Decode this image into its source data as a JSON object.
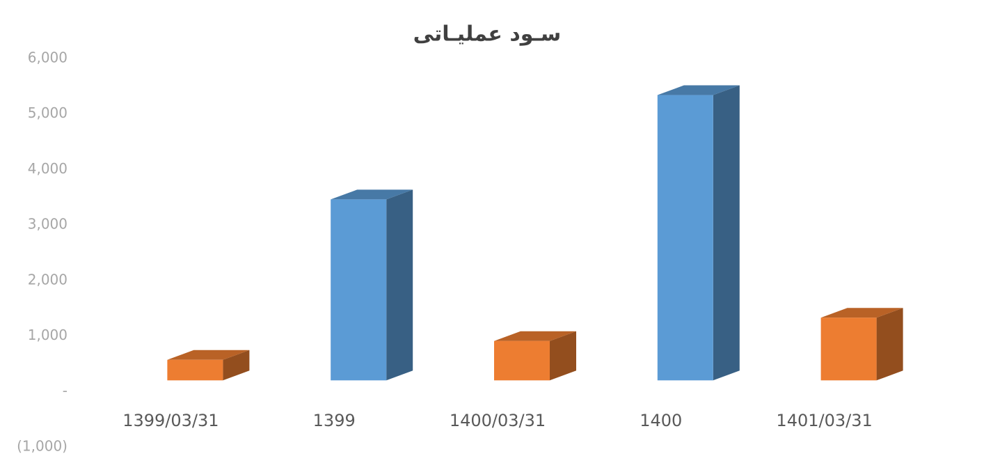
{
  "chart_data": {
    "type": "bar3d",
    "title": "سـود عملیـاتی",
    "categories": [
      "1399/03/31",
      "1399",
      "1400/03/31",
      "1400",
      "1401/03/31"
    ],
    "values": [
      370,
      3260,
      710,
      5140,
      1130
    ],
    "colors": [
      "#ed7d31",
      "#5b9bd5",
      "#ed7d31",
      "#5b9bd5",
      "#ed7d31"
    ],
    "ylim": [
      -1000,
      6000
    ],
    "yticks": [
      {
        "value": -1000,
        "label": "(1,000)"
      },
      {
        "value": 0,
        "label": "-"
      },
      {
        "value": 1000,
        "label": "1,000"
      },
      {
        "value": 2000,
        "label": "2,000"
      },
      {
        "value": 3000,
        "label": "3,000"
      },
      {
        "value": 4000,
        "label": "4,000"
      },
      {
        "value": 5000,
        "label": "5,000"
      },
      {
        "value": 6000,
        "label": "6,000"
      }
    ]
  }
}
